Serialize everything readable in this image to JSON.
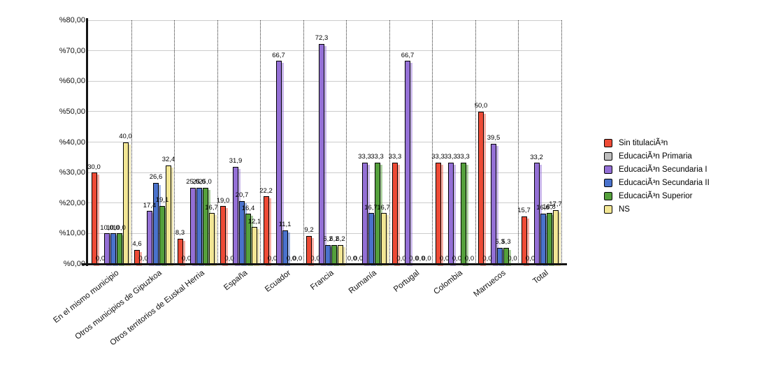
{
  "chart_data": {
    "type": "bar",
    "title": "",
    "xlabel": "",
    "ylabel": "",
    "ylim": [
      0,
      80
    ],
    "ytick_step": 10,
    "yaxis_tick_labels": [
      "%0,00",
      "%10,00",
      "%20,00",
      "%30,00",
      "%40,00",
      "%50,00",
      "%60,00",
      "%70,00",
      "%80,00"
    ],
    "decimal_separator": ",",
    "value_labels": "above each bar, one decimal, comma separator",
    "grid": "horizontal solid gray lines; vertical dotted black separators between categories",
    "legend_position": "right",
    "categories": [
      "En el mismo municipio",
      "Otros municipios de Gipuzkoa",
      "Otros territorios de Euskal Herria",
      "España",
      "Ecuador",
      "Francia",
      "Rumanía",
      "Portugal",
      "Colombia",
      "Marruecos",
      "Total"
    ],
    "series": [
      {
        "name": "Sin titulaciÃ³n",
        "color": "#ee4b36",
        "shadow": "rgba(238,75,54,0.45)",
        "values": [
          30.0,
          4.6,
          8.3,
          19.0,
          22.2,
          9.2,
          0.0,
          33.3,
          33.3,
          50.0,
          15.7
        ]
      },
      {
        "name": "EducaciÃ³n Primaria",
        "color": "#bdbdbd",
        "shadow": "rgba(160,160,160,0.45)",
        "values": [
          0.0,
          0.0,
          0.0,
          0.0,
          0.0,
          0.0,
          0.0,
          0.0,
          0.0,
          0.0,
          0.0
        ]
      },
      {
        "name": "EducaciÃ³n Secundaria I",
        "color": "#9470d6",
        "shadow": "rgba(148,112,214,0.5)",
        "values": [
          10.0,
          17.4,
          25.0,
          31.9,
          66.7,
          72.3,
          33.3,
          66.7,
          33.3,
          39.5,
          33.2
        ]
      },
      {
        "name": "EducaciÃ³n Secundaria II",
        "color": "#4a72cc",
        "shadow": "rgba(74,114,204,0.5)",
        "values": [
          10.0,
          26.6,
          25.0,
          20.7,
          11.1,
          6.2,
          16.7,
          0.0,
          0.0,
          5.3,
          16.6
        ]
      },
      {
        "name": "EducaciÃ³n Superior",
        "color": "#55a03c",
        "shadow": "rgba(85,160,60,0.5)",
        "values": [
          10.0,
          19.1,
          25.0,
          16.4,
          0.0,
          6.2,
          33.3,
          0.0,
          33.3,
          5.3,
          16.8
        ]
      },
      {
        "name": "NS",
        "color": "#f2e694",
        "shadow": "rgba(226,214,130,0.6)",
        "values": [
          40.0,
          32.4,
          16.7,
          12.1,
          0.0,
          6.2,
          16.7,
          0.0,
          0.0,
          0.0,
          17.7
        ]
      }
    ]
  },
  "colors": {
    "background": "#ffffff",
    "axis": "#141414",
    "gridline": "#cccccc",
    "separator": "#2a2a2a",
    "label_text": "#000000"
  }
}
